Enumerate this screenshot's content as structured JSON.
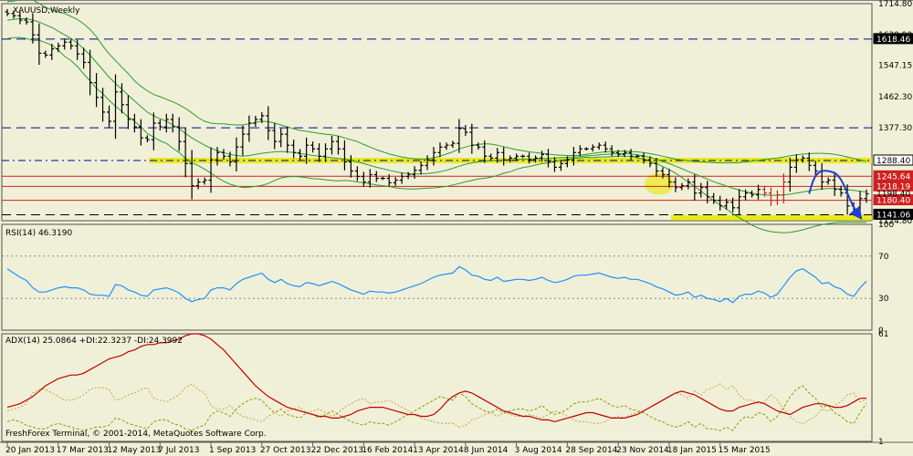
{
  "title": "XAUUSD,Weekly",
  "copyright": "FreshForex Terminal, © 2001-2014, MetaQuotes Software Corp.",
  "colors": {
    "background": "#F0F0D8",
    "bars": "#000000",
    "bands": "#2E9B2E",
    "hlines_dashed": "#0000A0",
    "hlines_red": "#D02020",
    "highlight": "#E8E800",
    "rsi": "#1E90FF",
    "adx": "#C00000",
    "plusdi": "#80A000",
    "minusdi": "#C8A040",
    "forecast": "#1E40D0"
  },
  "chart_data": [
    {
      "type": "ohlc",
      "name": "main",
      "symbol": "XAUUSD",
      "timeframe": "Weekly",
      "ylim": [
        1124.8,
        1714.8
      ],
      "y_ticks": [
        1714.8,
        1630.9,
        1547.15,
        1462.3,
        1377.3,
        1288.4,
        1124.8
      ],
      "y_ticks_labels": [
        "1714.80",
        "1630.90",
        "1547.15",
        "1462.30",
        "1377.30",
        "1288.40",
        "1124.80"
      ],
      "x_labels": [
        "20 Jan 2013",
        "17 Mar 2013",
        "12 May 2013",
        "7 Jul 2013",
        "1 Sep 2013",
        "27 Oct 2013",
        "22 Dec 2013",
        "16 Feb 2014",
        "13 Apr 2014",
        "8 Jun 2014",
        "3 Aug 2014",
        "28 Sep 2014",
        "23 Nov 2014",
        "18 Jan 2015",
        "15 Mar 2015"
      ],
      "levels": [
        {
          "value": 1618.46,
          "label": "1618.46",
          "style": "dashed",
          "color": "#0000A0",
          "box": "dark"
        },
        {
          "value": 1377.3,
          "label": "",
          "style": "dashed",
          "color": "#0000A0",
          "box": "none"
        },
        {
          "value": 1288.4,
          "label": "1288.40",
          "style": "dashdot",
          "color": "#0000A0",
          "box": "white"
        },
        {
          "value": 1245.64,
          "label": "1245.64",
          "style": "solid",
          "color": "#D02020",
          "box": "red"
        },
        {
          "value": 1218.19,
          "label": "1218.19",
          "style": "solid",
          "color": "#D02020",
          "box": "red"
        },
        {
          "value": 1180.4,
          "label": "1180.40",
          "style": "solid",
          "color": "#D02020",
          "box": "red"
        },
        {
          "value": 1141.06,
          "label": "1141.06",
          "style": "dashed",
          "color": "#000000",
          "box": "dark"
        }
      ],
      "current_price_label": "1198.40",
      "close": [
        1688,
        1682,
        1670,
        1665,
        1630,
        1580,
        1575,
        1592,
        1600,
        1610,
        1600,
        1578,
        1555,
        1500,
        1460,
        1420,
        1395,
        1475,
        1440,
        1400,
        1380,
        1350,
        1345,
        1390,
        1380,
        1400,
        1380,
        1340,
        1280,
        1220,
        1230,
        1235,
        1290,
        1310,
        1300,
        1285,
        1325,
        1360,
        1390,
        1400,
        1410,
        1370,
        1340,
        1360,
        1330,
        1310,
        1300,
        1330,
        1320,
        1300,
        1320,
        1340,
        1320,
        1285,
        1260,
        1245,
        1230,
        1250,
        1240,
        1240,
        1228,
        1235,
        1245,
        1250,
        1262,
        1275,
        1290,
        1310,
        1325,
        1330,
        1335,
        1375,
        1365,
        1330,
        1325,
        1300,
        1295,
        1310,
        1290,
        1295,
        1300,
        1300,
        1290,
        1295,
        1305,
        1285,
        1270,
        1280,
        1290,
        1310,
        1320,
        1320,
        1325,
        1330,
        1320,
        1310,
        1305,
        1310,
        1300,
        1300,
        1290,
        1280,
        1260,
        1250,
        1230,
        1215,
        1220,
        1230,
        1200,
        1215,
        1190,
        1180,
        1165,
        1175,
        1160,
        1190,
        1200,
        1195,
        1210,
        1200,
        1180,
        1195,
        1230,
        1270,
        1290,
        1295,
        1275,
        1260,
        1230,
        1235,
        1210,
        1200,
        1165,
        1155,
        1185,
        1198
      ],
      "bb_upper": [
        1720,
        1722,
        1725,
        1728,
        1725,
        1715,
        1705,
        1698,
        1692,
        1688,
        1680,
        1672,
        1660,
        1645,
        1625,
        1600,
        1578,
        1560,
        1542,
        1525,
        1505,
        1490,
        1478,
        1468,
        1462,
        1455,
        1448,
        1440,
        1430,
        1418,
        1405,
        1395,
        1390,
        1388,
        1388,
        1386,
        1385,
        1385,
        1388,
        1392,
        1395,
        1394,
        1390,
        1385,
        1380,
        1375,
        1370,
        1368,
        1365,
        1362,
        1360,
        1358,
        1355,
        1350,
        1345,
        1340,
        1332,
        1325,
        1318,
        1312,
        1306,
        1302,
        1298,
        1295,
        1293,
        1292,
        1293,
        1296,
        1300,
        1306,
        1312,
        1320,
        1325,
        1330,
        1332,
        1334,
        1333,
        1330,
        1326,
        1322,
        1318,
        1315,
        1312,
        1310,
        1308,
        1306,
        1304,
        1303,
        1302,
        1302,
        1303,
        1305,
        1308,
        1310,
        1312,
        1313,
        1314,
        1314,
        1313,
        1312,
        1310,
        1307,
        1304,
        1300,
        1296,
        1292,
        1290,
        1288,
        1286,
        1285,
        1284,
        1283,
        1282,
        1282,
        1282,
        1283,
        1285,
        1287,
        1289,
        1291,
        1293,
        1295,
        1298,
        1301,
        1304,
        1306,
        1307,
        1308,
        1308,
        1307,
        1305,
        1302,
        1298,
        1294,
        1290,
        1286
      ],
      "bb_middle": [
        1670,
        1672,
        1674,
        1674,
        1670,
        1665,
        1657,
        1650,
        1640,
        1630,
        1620,
        1608,
        1592,
        1575,
        1555,
        1535,
        1515,
        1498,
        1482,
        1466,
        1450,
        1435,
        1420,
        1410,
        1402,
        1395,
        1385,
        1375,
        1362,
        1350,
        1340,
        1330,
        1322,
        1315,
        1310,
        1305,
        1302,
        1300,
        1302,
        1305,
        1308,
        1310,
        1312,
        1313,
        1312,
        1310,
        1307,
        1305,
        1302,
        1300,
        1298,
        1296,
        1294,
        1292,
        1289,
        1285,
        1280,
        1275,
        1270,
        1266,
        1262,
        1258,
        1255,
        1253,
        1252,
        1252,
        1253,
        1255,
        1258,
        1262,
        1267,
        1273,
        1278,
        1282,
        1285,
        1287,
        1288,
        1289,
        1290,
        1290,
        1291,
        1292,
        1292,
        1293,
        1294,
        1294,
        1295,
        1296,
        1297,
        1298,
        1299,
        1301,
        1302,
        1304,
        1305,
        1306,
        1307,
        1307,
        1306,
        1304,
        1301,
        1297,
        1292,
        1286,
        1280,
        1273,
        1266,
        1259,
        1252,
        1245,
        1238,
        1231,
        1225,
        1219,
        1213,
        1208,
        1204,
        1200,
        1197,
        1195,
        1194,
        1194,
        1195,
        1197,
        1200,
        1203,
        1206,
        1209,
        1211,
        1212,
        1212,
        1211,
        1209,
        1207,
        1205,
        1203
      ],
      "bb_lower": [
        1620,
        1622,
        1623,
        1620,
        1615,
        1615,
        1609,
        1602,
        1588,
        1572,
        1560,
        1544,
        1524,
        1505,
        1485,
        1470,
        1452,
        1436,
        1422,
        1407,
        1395,
        1380,
        1362,
        1352,
        1342,
        1335,
        1322,
        1310,
        1294,
        1282,
        1275,
        1265,
        1254,
        1242,
        1232,
        1224,
        1219,
        1215,
        1216,
        1218,
        1221,
        1226,
        1234,
        1241,
        1244,
        1245,
        1244,
        1242,
        1239,
        1238,
        1236,
        1234,
        1233,
        1234,
        1233,
        1230,
        1228,
        1225,
        1222,
        1220,
        1218,
        1214,
        1212,
        1211,
        1211,
        1212,
        1213,
        1214,
        1216,
        1218,
        1222,
        1226,
        1231,
        1234,
        1238,
        1240,
        1243,
        1248,
        1254,
        1258,
        1264,
        1269,
        1272,
        1276,
        1280,
        1282,
        1286,
        1289,
        1292,
        1294,
        1295,
        1297,
        1296,
        1298,
        1298,
        1299,
        1300,
        1300,
        1299,
        1296,
        1292,
        1287,
        1280,
        1272,
        1264,
        1254,
        1242,
        1230,
        1218,
        1205,
        1192,
        1179,
        1168,
        1156,
        1144,
        1133,
        1123,
        1113,
        1105,
        1099,
        1095,
        1093,
        1092,
        1093,
        1096,
        1100,
        1105,
        1110,
        1114,
        1117,
        1119,
        1120,
        1120,
        1120,
        1120,
        1120
      ]
    },
    {
      "type": "line",
      "name": "RSI",
      "label": "RSI(14) 46.3190",
      "ylim": [
        0,
        100
      ],
      "y_ticks": [
        100,
        70,
        30,
        0
      ],
      "levels": [
        70,
        30
      ],
      "values": [
        58,
        54,
        50,
        47,
        40,
        36,
        36,
        38,
        40,
        41,
        40,
        40,
        38,
        34,
        33,
        33,
        32,
        43,
        42,
        38,
        36,
        33,
        32,
        38,
        39,
        40,
        38,
        35,
        30,
        27,
        29,
        30,
        38,
        40,
        40,
        38,
        44,
        48,
        50,
        52,
        54,
        48,
        45,
        48,
        44,
        42,
        41,
        45,
        44,
        42,
        44,
        46,
        44,
        41,
        38,
        36,
        34,
        37,
        36,
        36,
        35,
        36,
        38,
        40,
        42,
        44,
        47,
        50,
        52,
        53,
        54,
        60,
        57,
        52,
        51,
        48,
        47,
        50,
        46,
        47,
        48,
        48,
        47,
        48,
        50,
        47,
        45,
        46,
        48,
        51,
        52,
        52,
        53,
        54,
        52,
        50,
        49,
        50,
        48,
        48,
        46,
        44,
        41,
        39,
        36,
        33,
        34,
        36,
        31,
        33,
        30,
        29,
        27,
        30,
        26,
        32,
        34,
        34,
        37,
        35,
        31,
        34,
        42,
        50,
        56,
        58,
        54,
        50,
        44,
        45,
        41,
        39,
        34,
        32,
        40,
        46.319
      ]
    },
    {
      "type": "line",
      "name": "ADX",
      "label": "ADX(14) 25.0864 +DI:22.3237 -DI:24.3992",
      "ylim": [
        1,
        61
      ],
      "y_ticks": [
        61,
        1
      ],
      "adx": [
        20,
        21,
        22,
        24,
        26,
        29,
        32,
        34,
        36,
        37,
        38,
        38,
        39,
        41,
        43,
        45,
        47,
        48,
        49,
        51,
        52,
        54,
        55,
        55,
        56,
        56,
        57,
        58,
        60,
        61,
        61,
        60,
        58,
        55,
        52,
        48,
        44,
        40,
        36,
        32,
        29,
        26,
        24,
        22,
        20,
        19,
        18,
        17,
        16,
        15,
        15,
        14,
        14,
        15,
        16,
        18,
        19,
        20,
        20,
        20,
        19,
        18,
        17,
        16,
        16,
        15,
        15,
        16,
        19,
        23,
        26,
        28,
        29,
        28,
        26,
        24,
        22,
        20,
        18,
        17,
        16,
        15,
        15,
        14,
        13,
        13,
        12,
        13,
        14,
        15,
        16,
        17,
        17,
        16,
        15,
        14,
        14,
        14,
        15,
        16,
        18,
        20,
        22,
        24,
        26,
        28,
        29,
        28,
        27,
        25,
        23,
        21,
        19,
        18,
        18,
        20,
        21,
        22,
        23,
        22,
        20,
        18,
        17,
        16,
        18,
        20,
        21,
        22,
        22,
        21,
        20,
        20,
        21,
        23,
        25,
        25.0864
      ],
      "plus_di": [
        12,
        13,
        12,
        10,
        9,
        8,
        8,
        10,
        11,
        10,
        9,
        8,
        7,
        8,
        9,
        9,
        10,
        14,
        13,
        11,
        10,
        9,
        8,
        12,
        13,
        13,
        11,
        10,
        8,
        7,
        9,
        10,
        16,
        18,
        17,
        15,
        19,
        22,
        24,
        25,
        24,
        20,
        17,
        19,
        16,
        15,
        14,
        17,
        16,
        14,
        16,
        18,
        16,
        14,
        12,
        11,
        10,
        12,
        11,
        11,
        10,
        12,
        14,
        16,
        18,
        20,
        22,
        24,
        26,
        25,
        24,
        28,
        26,
        22,
        20,
        18,
        17,
        19,
        17,
        18,
        19,
        19,
        18,
        19,
        21,
        18,
        16,
        17,
        19,
        22,
        23,
        23,
        24,
        25,
        23,
        21,
        20,
        21,
        19,
        18,
        17,
        15,
        13,
        12,
        10,
        9,
        10,
        12,
        9,
        11,
        8,
        8,
        7,
        9,
        7,
        12,
        15,
        14,
        17,
        16,
        12,
        15,
        20,
        26,
        30,
        32,
        28,
        25,
        20,
        21,
        17,
        15,
        12,
        11,
        17,
        22.3237
      ],
      "minus_di": [
        18,
        19,
        20,
        22,
        28,
        30,
        30,
        28,
        26,
        24,
        24,
        25,
        27,
        30,
        31,
        31,
        30,
        24,
        25,
        27,
        28,
        30,
        31,
        25,
        24,
        23,
        25,
        27,
        31,
        33,
        30,
        28,
        21,
        19,
        19,
        21,
        17,
        15,
        14,
        13,
        12,
        15,
        17,
        15,
        18,
        19,
        20,
        17,
        18,
        19,
        17,
        15,
        17,
        20,
        22,
        24,
        25,
        22,
        23,
        23,
        24,
        22,
        20,
        18,
        16,
        14,
        13,
        12,
        11,
        11,
        11,
        9,
        10,
        13,
        14,
        16,
        17,
        15,
        17,
        16,
        15,
        15,
        16,
        15,
        14,
        16,
        18,
        17,
        15,
        13,
        12,
        12,
        11,
        11,
        12,
        14,
        15,
        14,
        16,
        17,
        18,
        20,
        22,
        24,
        26,
        28,
        27,
        25,
        29,
        27,
        30,
        31,
        33,
        30,
        32,
        27,
        24,
        24,
        22,
        23,
        27,
        24,
        19,
        15,
        12,
        11,
        13,
        15,
        19,
        18,
        21,
        23,
        27,
        28,
        23,
        24.3992
      ]
    }
  ],
  "forecast": [
    [
      126,
      1198
    ],
    [
      128,
      1255
    ],
    [
      130,
      1255
    ],
    [
      132,
      1180
    ],
    [
      134,
      1135
    ]
  ]
}
